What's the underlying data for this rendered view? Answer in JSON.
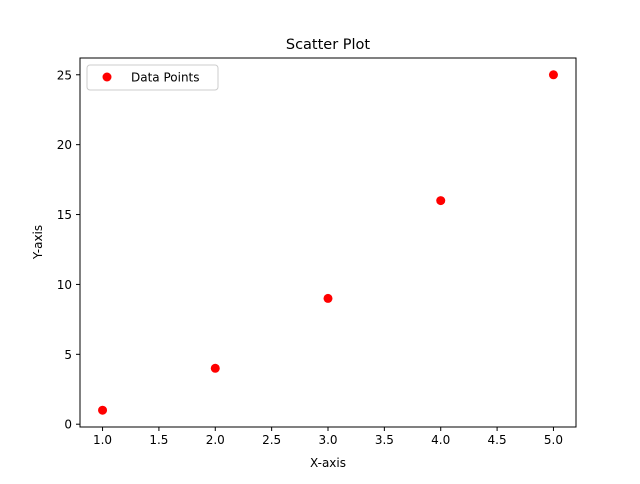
{
  "chart_data": {
    "type": "scatter",
    "title": "Scatter Plot",
    "xlabel": "X-axis",
    "ylabel": "Y-axis",
    "xlim": [
      0.8,
      5.2
    ],
    "ylim": [
      -0.2,
      26.2
    ],
    "xticks": [
      1.0,
      1.5,
      2.0,
      2.5,
      3.0,
      3.5,
      4.0,
      4.5,
      5.0
    ],
    "xtick_labels": [
      "1.0",
      "1.5",
      "2.0",
      "2.5",
      "3.0",
      "3.5",
      "4.0",
      "4.5",
      "5.0"
    ],
    "yticks": [
      0,
      5,
      10,
      15,
      20,
      25
    ],
    "ytick_labels": [
      "0",
      "5",
      "10",
      "15",
      "20",
      "25"
    ],
    "grid": false,
    "legend_position": "top-left",
    "series": [
      {
        "name": "Data Points",
        "color": "#ff0000",
        "points": [
          {
            "x": 1,
            "y": 1
          },
          {
            "x": 2,
            "y": 4
          },
          {
            "x": 3,
            "y": 9
          },
          {
            "x": 4,
            "y": 16
          },
          {
            "x": 5,
            "y": 25
          }
        ]
      }
    ]
  }
}
